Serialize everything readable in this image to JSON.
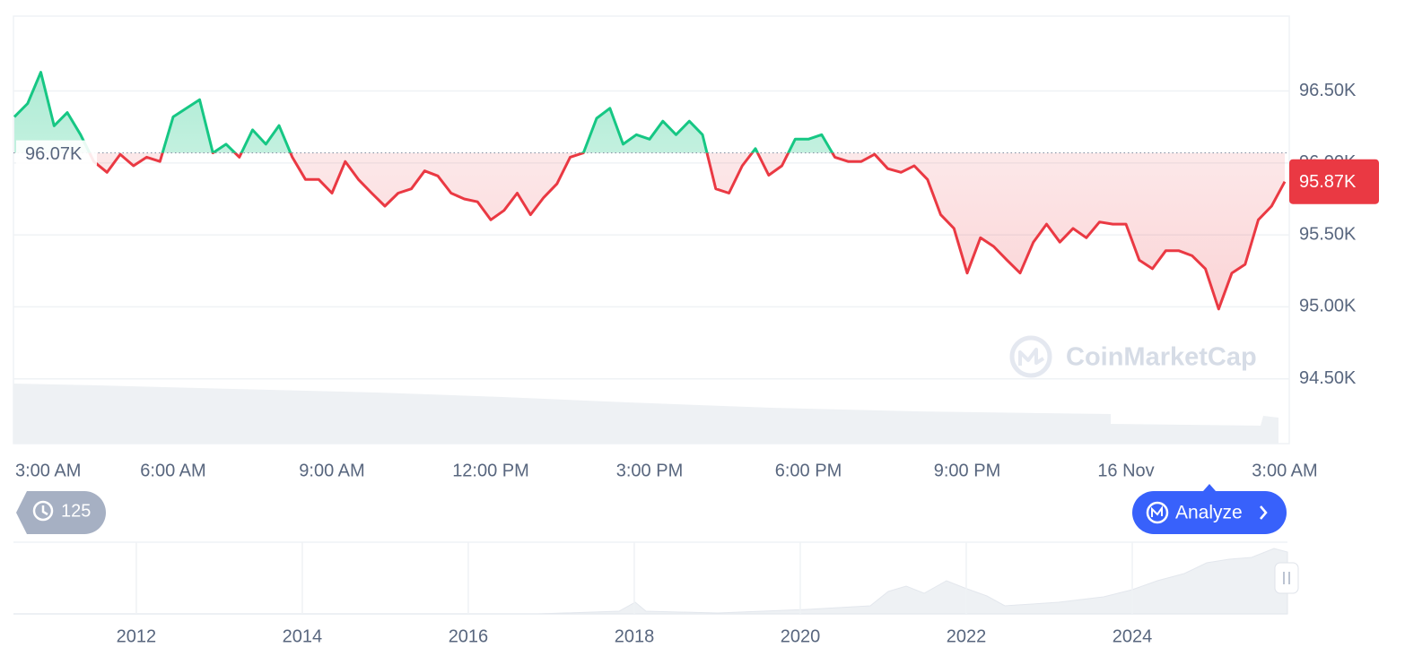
{
  "chart_data": {
    "type": "line",
    "x": [
      0,
      0.25,
      0.5,
      0.75,
      1,
      1.25,
      1.5,
      1.75,
      2,
      2.25,
      2.5,
      2.75,
      3,
      3.25,
      3.5,
      3.75,
      4,
      4.25,
      4.5,
      4.75,
      5,
      5.25,
      5.5,
      5.75,
      6,
      6.25,
      6.5,
      6.75,
      7,
      7.25,
      7.5,
      7.75,
      8,
      8.25,
      8.5,
      8.75,
      9,
      9.25,
      9.5,
      9.75,
      10,
      10.25,
      10.5,
      10.75,
      11,
      11.25,
      11.5,
      11.75,
      12,
      12.25,
      12.5,
      12.75,
      13,
      13.25,
      13.5,
      13.75,
      14,
      14.25,
      14.5,
      14.75,
      15,
      15.25,
      15.5,
      15.75,
      16,
      16.25,
      16.5,
      16.75,
      17,
      17.25,
      17.5,
      17.75,
      18,
      18.25,
      18.5,
      18.75,
      19,
      19.25,
      19.5,
      19.75,
      20,
      20.25,
      20.5,
      20.75,
      21,
      21.25,
      21.5,
      21.75,
      22,
      22.25,
      22.5,
      22.75,
      23,
      23.25,
      23.5,
      23.75,
      24
    ],
    "values": [
      96320,
      96413,
      96630,
      96258,
      96350,
      96196,
      96010,
      95935,
      96060,
      95980,
      96040,
      96010,
      96320,
      96380,
      96440,
      96070,
      96130,
      96040,
      96230,
      96130,
      96260,
      96040,
      95885,
      95885,
      95790,
      96010,
      95885,
      95790,
      95700,
      95790,
      95820,
      95945,
      95910,
      95790,
      95750,
      95730,
      95605,
      95670,
      95790,
      95640,
      95760,
      95855,
      96040,
      96070,
      96310,
      96380,
      96130,
      96196,
      96165,
      96290,
      96196,
      96290,
      96196,
      95820,
      95790,
      95980,
      96100,
      95915,
      95980,
      96165,
      96165,
      96196,
      96040,
      96010,
      96010,
      96060,
      95960,
      95935,
      95980,
      95885,
      95640,
      95545,
      95235,
      95480,
      95420,
      95325,
      95235,
      95450,
      95575,
      95450,
      95545,
      95480,
      95590,
      95575,
      95575,
      95325,
      95265,
      95390,
      95390,
      95355,
      95265,
      94985,
      95235,
      95295,
      95605,
      95700,
      95870
    ],
    "up_color": "#16c784",
    "down_color": "#ea3943",
    "baseline": {
      "value": 96070,
      "label": "96.07K"
    },
    "last_price": {
      "value": 95870,
      "label": "95.87K"
    },
    "xlim": [
      0,
      24
    ],
    "xticks": [
      {
        "value": 0,
        "label": "3:00 AM"
      },
      {
        "value": 3,
        "label": "6:00 AM"
      },
      {
        "value": 6,
        "label": "9:00 AM"
      },
      {
        "value": 9,
        "label": "12:00 PM"
      },
      {
        "value": 12,
        "label": "3:00 PM"
      },
      {
        "value": 15,
        "label": "6:00 PM"
      },
      {
        "value": 18,
        "label": "9:00 PM"
      },
      {
        "value": 21,
        "label": "16 Nov"
      },
      {
        "value": 24,
        "label": "3:00 AM"
      }
    ],
    "ylim": [
      94050,
      97020
    ],
    "yticks": [
      {
        "value": 94500,
        "label": "94.50K"
      },
      {
        "value": 95000,
        "label": "95.00K"
      },
      {
        "value": 95500,
        "label": "95.50K"
      },
      {
        "value": 96000,
        "label": "96.00K"
      },
      {
        "value": 96500,
        "label": "96.50K"
      }
    ],
    "grid": true,
    "watermark": "CoinMarketCap",
    "navigator": {
      "xlim": [
        2010.52,
        2025.87
      ],
      "xticks": [
        2012,
        2014,
        2016,
        2018,
        2020,
        2022,
        2024
      ]
    }
  },
  "ui": {
    "history_count": 125,
    "analyze_button": "Analyze"
  }
}
